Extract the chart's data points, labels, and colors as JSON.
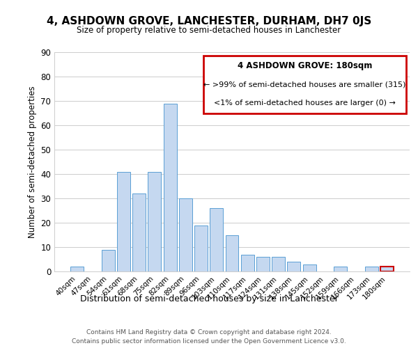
{
  "title": "4, ASHDOWN GROVE, LANCHESTER, DURHAM, DH7 0JS",
  "subtitle": "Size of property relative to semi-detached houses in Lanchester",
  "xlabel": "Distribution of semi-detached houses by size in Lanchester",
  "ylabel": "Number of semi-detached properties",
  "bar_color": "#c5d8f0",
  "bar_edge_color": "#5a9fd4",
  "categories": [
    "40sqm",
    "47sqm",
    "54sqm",
    "61sqm",
    "68sqm",
    "75sqm",
    "82sqm",
    "89sqm",
    "96sqm",
    "103sqm",
    "110sqm",
    "117sqm",
    "124sqm",
    "131sqm",
    "138sqm",
    "145sqm",
    "152sqm",
    "159sqm",
    "166sqm",
    "173sqm",
    "180sqm"
  ],
  "values": [
    2,
    0,
    9,
    41,
    32,
    41,
    69,
    30,
    19,
    26,
    15,
    7,
    6,
    6,
    4,
    3,
    0,
    2,
    0,
    2,
    2
  ],
  "ylim": [
    0,
    90
  ],
  "yticks": [
    0,
    10,
    20,
    30,
    40,
    50,
    60,
    70,
    80,
    90
  ],
  "legend_title": "4 ASHDOWN GROVE: 180sqm",
  "legend_line1": "← >99% of semi-detached houses are smaller (315)",
  "legend_line2": "<1% of semi-detached houses are larger (0) →",
  "legend_box_color": "#ffffff",
  "legend_box_edge_color": "#cc0000",
  "footer1": "Contains HM Land Registry data © Crown copyright and database right 2024.",
  "footer2": "Contains public sector information licensed under the Open Government Licence v3.0.",
  "highlight_bar_index": 20,
  "highlight_bar_edge_color": "#cc0000"
}
